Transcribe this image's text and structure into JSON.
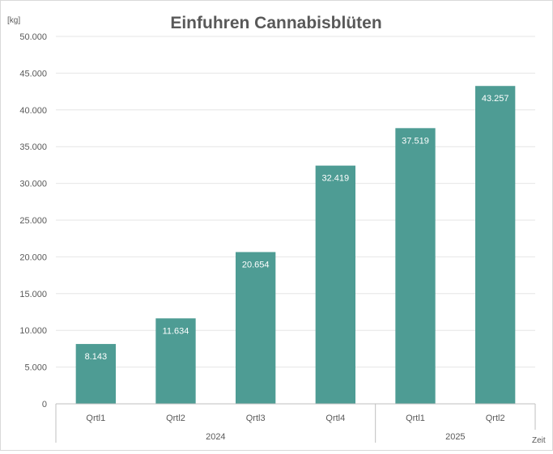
{
  "chart_data": {
    "type": "bar",
    "title": "Einfuhren Cannabisblüten",
    "ylabel": "[kg]",
    "xlabel": "Zeit",
    "ylim": [
      0,
      50000
    ],
    "yticks": [
      0,
      5000,
      10000,
      15000,
      20000,
      25000,
      30000,
      35000,
      40000,
      45000,
      50000
    ],
    "ytick_labels": [
      "0",
      "5.000",
      "10.000",
      "15.000",
      "20.000",
      "25.000",
      "30.000",
      "35.000",
      "40.000",
      "45.000",
      "50.000"
    ],
    "categories": [
      "Qrtl1",
      "Qrtl2",
      "Qrtl3",
      "Qrtl4",
      "Qrtl1",
      "Qrtl2"
    ],
    "groups": [
      {
        "label": "2024",
        "count": 4
      },
      {
        "label": "2025",
        "count": 2
      }
    ],
    "values": [
      8143,
      11634,
      20654,
      32419,
      37519,
      43257
    ],
    "data_labels": [
      "8.143",
      "11.634",
      "20.654",
      "32.419",
      "37.519",
      "43.257"
    ],
    "bar_color": "#4e9c94",
    "grid": true,
    "legend": "none"
  }
}
